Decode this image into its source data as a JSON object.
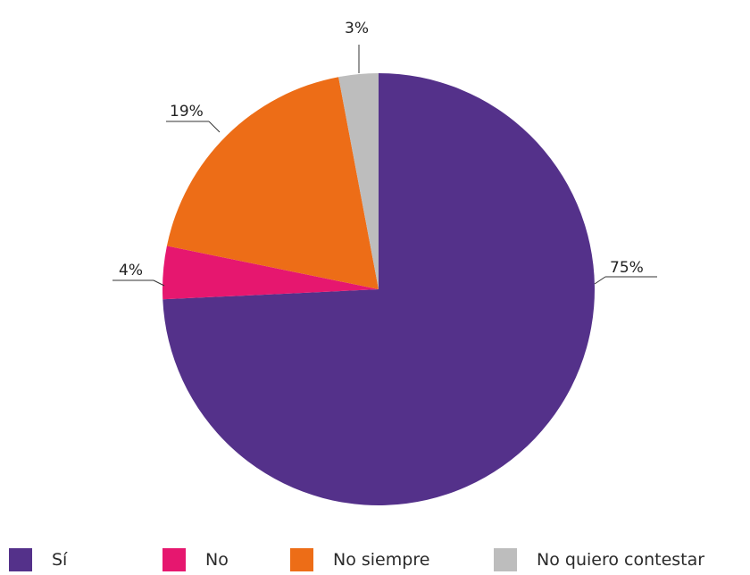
{
  "chart_data": {
    "type": "pie",
    "slices": [
      {
        "name": "Sí",
        "value": 75,
        "label": "75%",
        "color": "#54318a"
      },
      {
        "name": "No",
        "value": 4,
        "label": "4%",
        "color": "#e6176f"
      },
      {
        "name": "No siempre",
        "value": 19,
        "label": "19%",
        "color": "#ed6d17"
      },
      {
        "name": "No quiero contestar",
        "value": 3,
        "label": "3%",
        "color": "#bdbdbd"
      }
    ],
    "start_angle_deg": 0,
    "direction": "clockwise",
    "legend_position": "bottom"
  }
}
